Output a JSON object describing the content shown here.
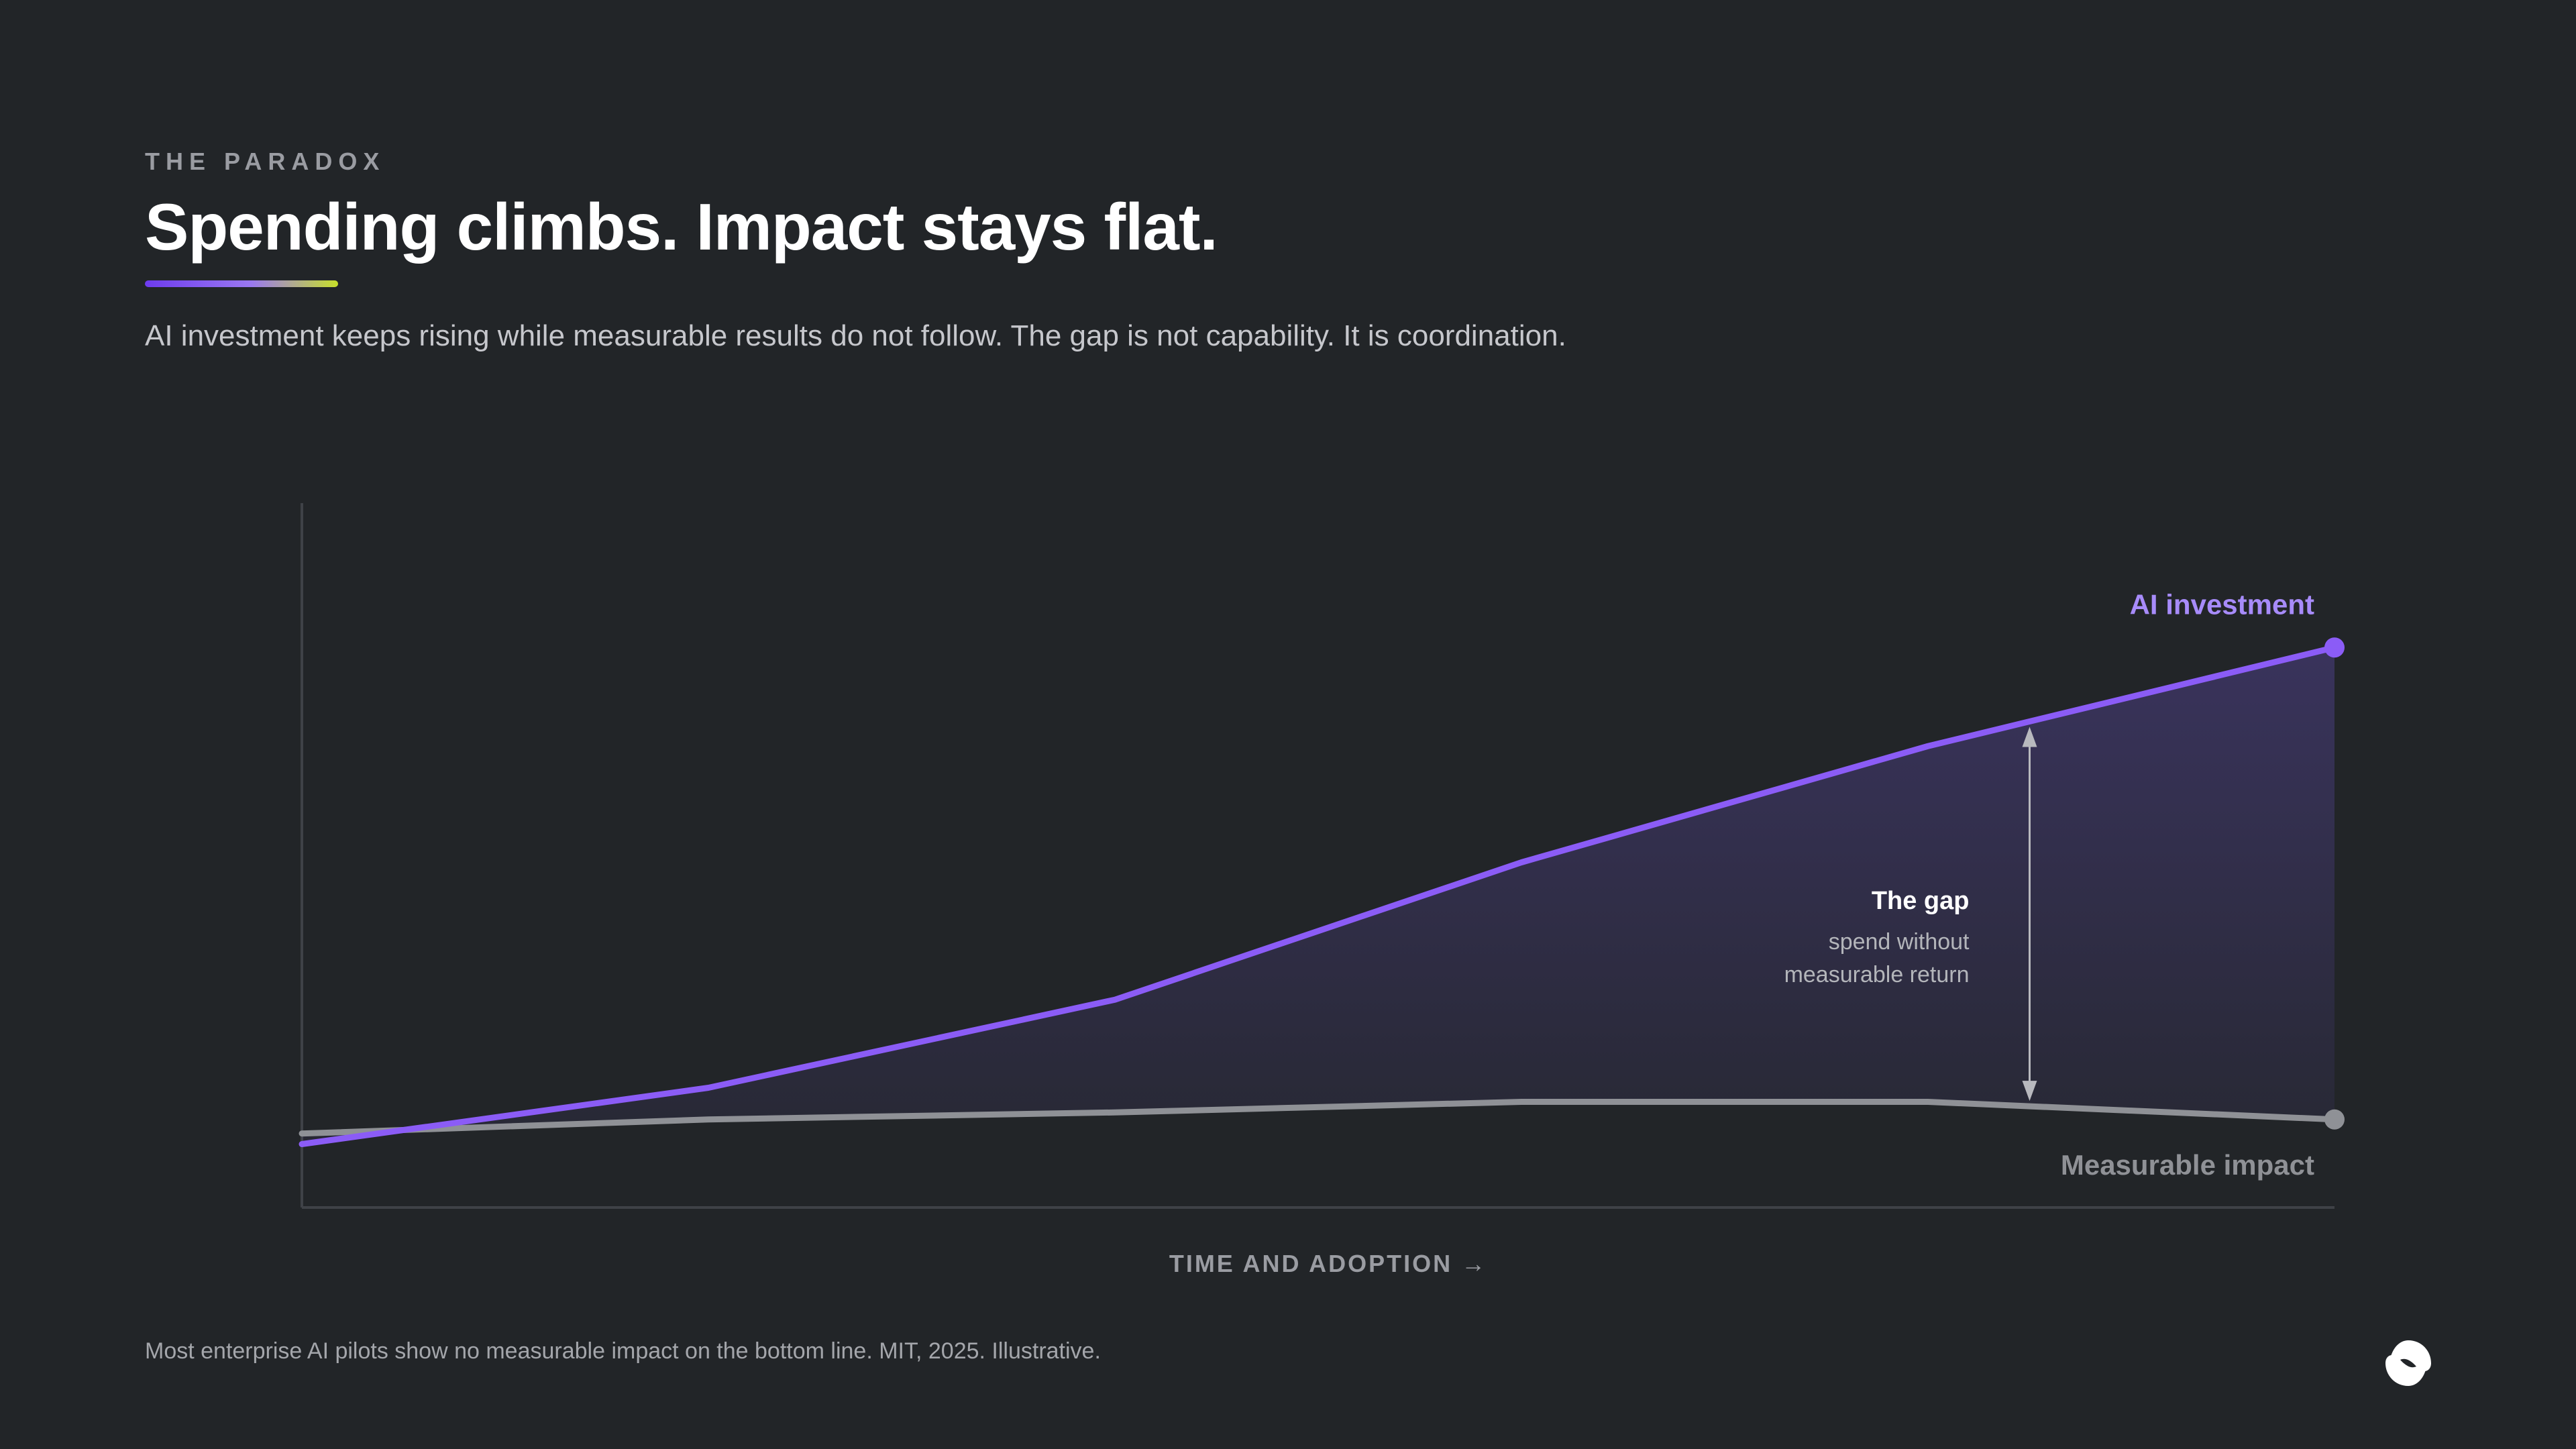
{
  "header": {
    "eyebrow": "THE PARADOX",
    "title": "Spending climbs. Impact stays flat.",
    "subtitle": "AI investment keeps rising while measurable results do not follow. The gap is not capability. It is coordination."
  },
  "colors": {
    "background": "#222528",
    "investment": "#8b5cf6",
    "investment_label": "#a78bfa",
    "impact": "#8f9196",
    "accent_gradient_start": "#6d3bef",
    "accent_gradient_end": "#c7e02a"
  },
  "chart_data": {
    "type": "line",
    "xlabel": "TIME AND ADOPTION →",
    "ylabel": "",
    "x": [
      0,
      1,
      2,
      3,
      4,
      5
    ],
    "xlim": [
      0,
      5
    ],
    "ylim": [
      0,
      100
    ],
    "grid": false,
    "series": [
      {
        "name": "AI investment",
        "values": [
          9,
          17,
          29.5,
          49,
          65.5,
          79.5
        ]
      },
      {
        "name": "Measurable impact",
        "values": [
          10.5,
          12.5,
          13.5,
          15,
          15,
          12.5
        ]
      }
    ],
    "annotation": {
      "at_x": 4.25,
      "title": "The gap",
      "lines": [
        "spend without",
        "measurable return"
      ]
    }
  },
  "footer": {
    "footnote": "Most enterprise AI pilots show no measurable impact on the bottom line. MIT, 2025. Illustrative.",
    "logo_icon": "brand-logo-icon"
  }
}
